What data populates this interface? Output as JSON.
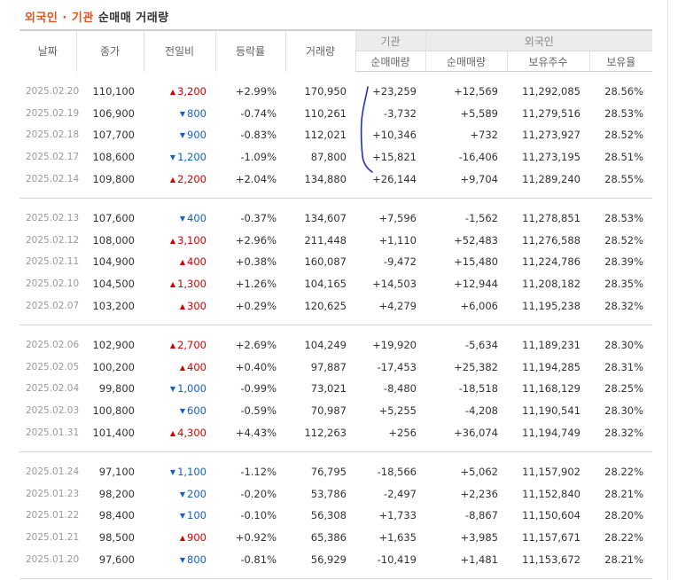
{
  "title": {
    "part1": "외국인 · 기관",
    "part2": "순매매 거래량"
  },
  "headers": {
    "date": "날짜",
    "close": "종가",
    "change": "전일비",
    "rate": "등락률",
    "volume": "거래량",
    "institution": "기관",
    "foreign": "외국인",
    "inst_net": "순매매량",
    "foreign_net": "순매매량",
    "foreign_shares": "보유주수",
    "foreign_ratio": "보유율"
  },
  "colors": {
    "up": "#d60000",
    "down": "#1761c2",
    "title_accent": "#e0551b"
  },
  "groups": [
    {
      "rows": [
        {
          "date": "2025.02.20",
          "close": "110,100",
          "dir": "up",
          "change": "3,200",
          "rate": "+2.99%",
          "volume": "170,950",
          "inst": "+23,259",
          "foreign": "+12,569",
          "shares": "11,292,085",
          "ratio": "28.56%"
        },
        {
          "date": "2025.02.19",
          "close": "106,900",
          "dir": "down",
          "change": "800",
          "rate": "-0.74%",
          "volume": "110,261",
          "inst": "-3,732",
          "foreign": "+5,589",
          "shares": "11,279,516",
          "ratio": "28.53%"
        },
        {
          "date": "2025.02.18",
          "close": "107,700",
          "dir": "down",
          "change": "900",
          "rate": "-0.83%",
          "volume": "112,021",
          "inst": "+10,346",
          "foreign": "+732",
          "shares": "11,273,927",
          "ratio": "28.52%"
        },
        {
          "date": "2025.02.17",
          "close": "108,600",
          "dir": "down",
          "change": "1,200",
          "rate": "-1.09%",
          "volume": "87,800",
          "inst": "+15,821",
          "foreign": "-16,406",
          "shares": "11,273,195",
          "ratio": "28.51%"
        },
        {
          "date": "2025.02.14",
          "close": "109,800",
          "dir": "up",
          "change": "2,200",
          "rate": "+2.04%",
          "volume": "134,880",
          "inst": "+26,144",
          "foreign": "+9,704",
          "shares": "11,289,240",
          "ratio": "28.55%"
        }
      ]
    },
    {
      "rows": [
        {
          "date": "2025.02.13",
          "close": "107,600",
          "dir": "down",
          "change": "400",
          "rate": "-0.37%",
          "volume": "134,607",
          "inst": "+7,596",
          "foreign": "-1,562",
          "shares": "11,278,851",
          "ratio": "28.53%"
        },
        {
          "date": "2025.02.12",
          "close": "108,000",
          "dir": "up",
          "change": "3,100",
          "rate": "+2.96%",
          "volume": "211,448",
          "inst": "+1,110",
          "foreign": "+52,483",
          "shares": "11,276,588",
          "ratio": "28.52%"
        },
        {
          "date": "2025.02.11",
          "close": "104,900",
          "dir": "up",
          "change": "400",
          "rate": "+0.38%",
          "volume": "160,087",
          "inst": "-9,472",
          "foreign": "+15,480",
          "shares": "11,224,786",
          "ratio": "28.39%"
        },
        {
          "date": "2025.02.10",
          "close": "104,500",
          "dir": "up",
          "change": "1,300",
          "rate": "+1.26%",
          "volume": "104,165",
          "inst": "+14,503",
          "foreign": "+12,944",
          "shares": "11,208,182",
          "ratio": "28.35%"
        },
        {
          "date": "2025.02.07",
          "close": "103,200",
          "dir": "up",
          "change": "300",
          "rate": "+0.29%",
          "volume": "120,625",
          "inst": "+4,279",
          "foreign": "+6,006",
          "shares": "11,195,238",
          "ratio": "28.32%"
        }
      ]
    },
    {
      "rows": [
        {
          "date": "2025.02.06",
          "close": "102,900",
          "dir": "up",
          "change": "2,700",
          "rate": "+2.69%",
          "volume": "104,249",
          "inst": "+19,920",
          "foreign": "-5,634",
          "shares": "11,189,231",
          "ratio": "28.30%"
        },
        {
          "date": "2025.02.05",
          "close": "100,200",
          "dir": "up",
          "change": "400",
          "rate": "+0.40%",
          "volume": "97,887",
          "inst": "-17,453",
          "foreign": "+25,382",
          "shares": "11,194,285",
          "ratio": "28.31%"
        },
        {
          "date": "2025.02.04",
          "close": "99,800",
          "dir": "down",
          "change": "1,000",
          "rate": "-0.99%",
          "volume": "73,021",
          "inst": "-8,480",
          "foreign": "-18,518",
          "shares": "11,168,129",
          "ratio": "28.25%"
        },
        {
          "date": "2025.02.03",
          "close": "100,800",
          "dir": "down",
          "change": "600",
          "rate": "-0.59%",
          "volume": "70,987",
          "inst": "+5,255",
          "foreign": "-4,208",
          "shares": "11,190,541",
          "ratio": "28.30%"
        },
        {
          "date": "2025.01.31",
          "close": "101,400",
          "dir": "up",
          "change": "4,300",
          "rate": "+4.43%",
          "volume": "112,263",
          "inst": "+256",
          "foreign": "+36,074",
          "shares": "11,194,749",
          "ratio": "28.32%"
        }
      ]
    },
    {
      "rows": [
        {
          "date": "2025.01.24",
          "close": "97,100",
          "dir": "down",
          "change": "1,100",
          "rate": "-1.12%",
          "volume": "76,795",
          "inst": "-18,566",
          "foreign": "+5,062",
          "shares": "11,157,902",
          "ratio": "28.22%"
        },
        {
          "date": "2025.01.23",
          "close": "98,200",
          "dir": "down",
          "change": "200",
          "rate": "-0.20%",
          "volume": "53,786",
          "inst": "-2,497",
          "foreign": "+2,236",
          "shares": "11,152,840",
          "ratio": "28.21%"
        },
        {
          "date": "2025.01.22",
          "close": "98,400",
          "dir": "down",
          "change": "100",
          "rate": "-0.10%",
          "volume": "56,308",
          "inst": "+1,733",
          "foreign": "-8,867",
          "shares": "11,150,604",
          "ratio": "28.20%"
        },
        {
          "date": "2025.01.21",
          "close": "98,500",
          "dir": "up",
          "change": "900",
          "rate": "+0.92%",
          "volume": "65,386",
          "inst": "+1,635",
          "foreign": "+3,985",
          "shares": "11,157,671",
          "ratio": "28.22%"
        },
        {
          "date": "2025.01.20",
          "close": "97,600",
          "dir": "down",
          "change": "800",
          "rate": "-0.81%",
          "volume": "56,929",
          "inst": "-10,419",
          "foreign": "+1,481",
          "shares": "11,153,672",
          "ratio": "28.21%"
        }
      ]
    }
  ]
}
